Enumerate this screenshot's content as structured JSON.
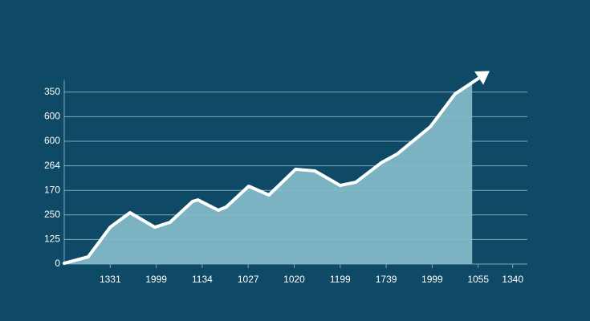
{
  "chart_data": {
    "type": "area",
    "x": [
      0,
      0.52,
      1.0,
      1.43,
      1.97,
      2.3,
      2.79,
      2.91,
      3.35,
      3.52,
      4.01,
      4.45,
      5.03,
      5.45,
      6.0,
      6.34,
      6.89,
      7.24,
      7.96,
      8.5,
      8.87
    ],
    "values": [
      0.03,
      0.29,
      1.5,
      2.09,
      1.5,
      1.7,
      2.55,
      2.61,
      2.19,
      2.32,
      3.17,
      2.81,
      3.86,
      3.79,
      3.2,
      3.33,
      4.12,
      4.48,
      5.59,
      6.93,
      7.39
    ],
    "color": "#85bccb",
    "line_color": "#ffffff",
    "xlim": [
      0,
      10.07
    ],
    "ylim": [
      0,
      7.5
    ],
    "xticks": [
      {
        "value": 1,
        "label": "1331"
      },
      {
        "value": 2,
        "label": "1999"
      },
      {
        "value": 3,
        "label": "1134"
      },
      {
        "value": 4,
        "label": "1027"
      },
      {
        "value": 5,
        "label": "1020"
      },
      {
        "value": 6,
        "label": "1199"
      },
      {
        "value": 7,
        "label": "1739"
      },
      {
        "value": 8,
        "label": "1999"
      },
      {
        "value": 9,
        "label": "1055"
      },
      {
        "value": 9.75,
        "label": "1340"
      }
    ],
    "yticks": [
      0,
      {
        "value": 1,
        "label": "125"
      },
      {
        "value": 2,
        "label": "250"
      },
      {
        "value": 3,
        "label": "170"
      },
      {
        "value": 4,
        "label": "264"
      },
      {
        "value": 5,
        "label": "600"
      },
      {
        "value": 6,
        "label": "600"
      },
      {
        "value": 7,
        "label": "350"
      }
    ],
    "grid": true
  }
}
